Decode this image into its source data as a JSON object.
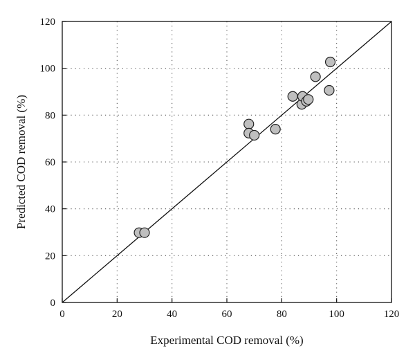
{
  "chart_data": {
    "type": "scatter",
    "title": "",
    "xlabel": "Experimental COD removal (%)",
    "ylabel": "Predicted COD removal (%)",
    "xlim": [
      0,
      120
    ],
    "ylim": [
      0,
      120
    ],
    "xticks": [
      "0",
      "20",
      "40",
      "60",
      "80",
      "100",
      "120"
    ],
    "yticks": [
      "0",
      "20",
      "40",
      "60",
      "80",
      "100",
      "120"
    ],
    "grid": true,
    "reference_line": {
      "x": [
        0,
        120
      ],
      "y": [
        0,
        120
      ]
    },
    "series": [
      {
        "marker_color": "#bfbfbf",
        "points": [
          {
            "x": 28.0,
            "y": 29.8
          },
          {
            "x": 30.0,
            "y": 29.8
          },
          {
            "x": 68.0,
            "y": 76.2
          },
          {
            "x": 68.0,
            "y": 72.3
          },
          {
            "x": 70.0,
            "y": 71.4
          },
          {
            "x": 77.7,
            "y": 74.0
          },
          {
            "x": 84.0,
            "y": 88.0
          },
          {
            "x": 87.3,
            "y": 84.6
          },
          {
            "x": 87.6,
            "y": 88.0
          },
          {
            "x": 89.0,
            "y": 85.9
          },
          {
            "x": 89.7,
            "y": 86.7
          },
          {
            "x": 92.3,
            "y": 96.4
          },
          {
            "x": 97.3,
            "y": 90.6
          },
          {
            "x": 97.7,
            "y": 102.7
          }
        ]
      }
    ]
  }
}
